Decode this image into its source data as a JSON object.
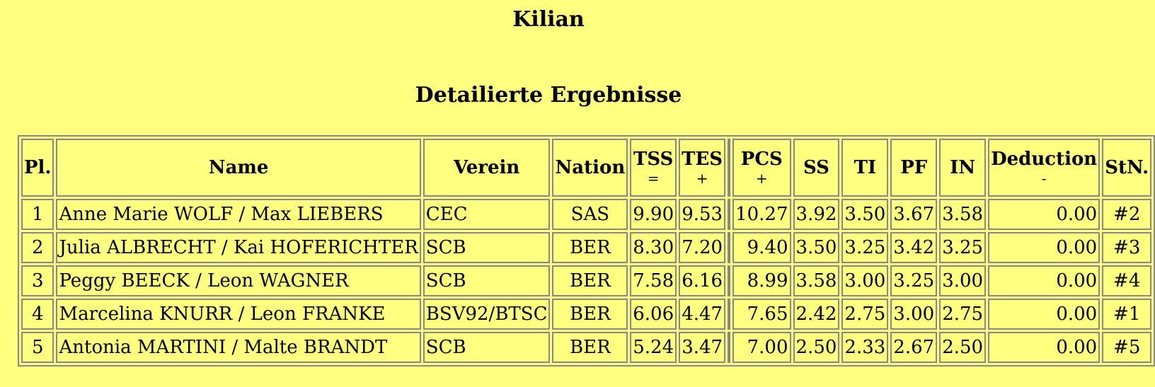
{
  "header": {
    "title": "Kilian",
    "subtitle": "Detailierte Ergebnisse"
  },
  "table": {
    "columns": [
      {
        "label": "Pl."
      },
      {
        "label": "Name"
      },
      {
        "label": "Verein"
      },
      {
        "label": "Nation"
      },
      {
        "label": "TSS",
        "sign": "="
      },
      {
        "label": "TES",
        "sign": "+"
      },
      {
        "label": "PCS",
        "sign": "+"
      },
      {
        "label": "SS"
      },
      {
        "label": "TI"
      },
      {
        "label": "PF"
      },
      {
        "label": "IN"
      },
      {
        "label": "Deduction",
        "sign": "-"
      },
      {
        "label": "StN."
      }
    ],
    "rows": [
      [
        "1",
        "Anne Marie WOLF / Max LIEBERS",
        "CEC",
        "SAS",
        "9.90",
        "9.53",
        "10.27",
        "3.92",
        "3.50",
        "3.67",
        "3.58",
        "0.00",
        "#2"
      ],
      [
        "2",
        "Julia ALBRECHT / Kai HOFERICHTER",
        "SCB",
        "BER",
        "8.30",
        "7.20",
        "9.40",
        "3.50",
        "3.25",
        "3.42",
        "3.25",
        "0.00",
        "#3"
      ],
      [
        "3",
        "Peggy BEECK / Leon WAGNER",
        "SCB",
        "BER",
        "7.58",
        "6.16",
        "8.99",
        "3.58",
        "3.00",
        "3.25",
        "3.00",
        "0.00",
        "#4"
      ],
      [
        "4",
        "Marcelina KNURR / Leon FRANKE",
        "BSV92/BTSC",
        "BER",
        "6.06",
        "4.47",
        "7.65",
        "2.42",
        "2.75",
        "3.00",
        "2.75",
        "0.00",
        "#1"
      ],
      [
        "5",
        "Antonia MARTINI / Malte BRANDT",
        "SCB",
        "BER",
        "5.24",
        "3.47",
        "7.00",
        "2.50",
        "2.33",
        "2.67",
        "2.50",
        "0.00",
        "#5"
      ]
    ]
  }
}
